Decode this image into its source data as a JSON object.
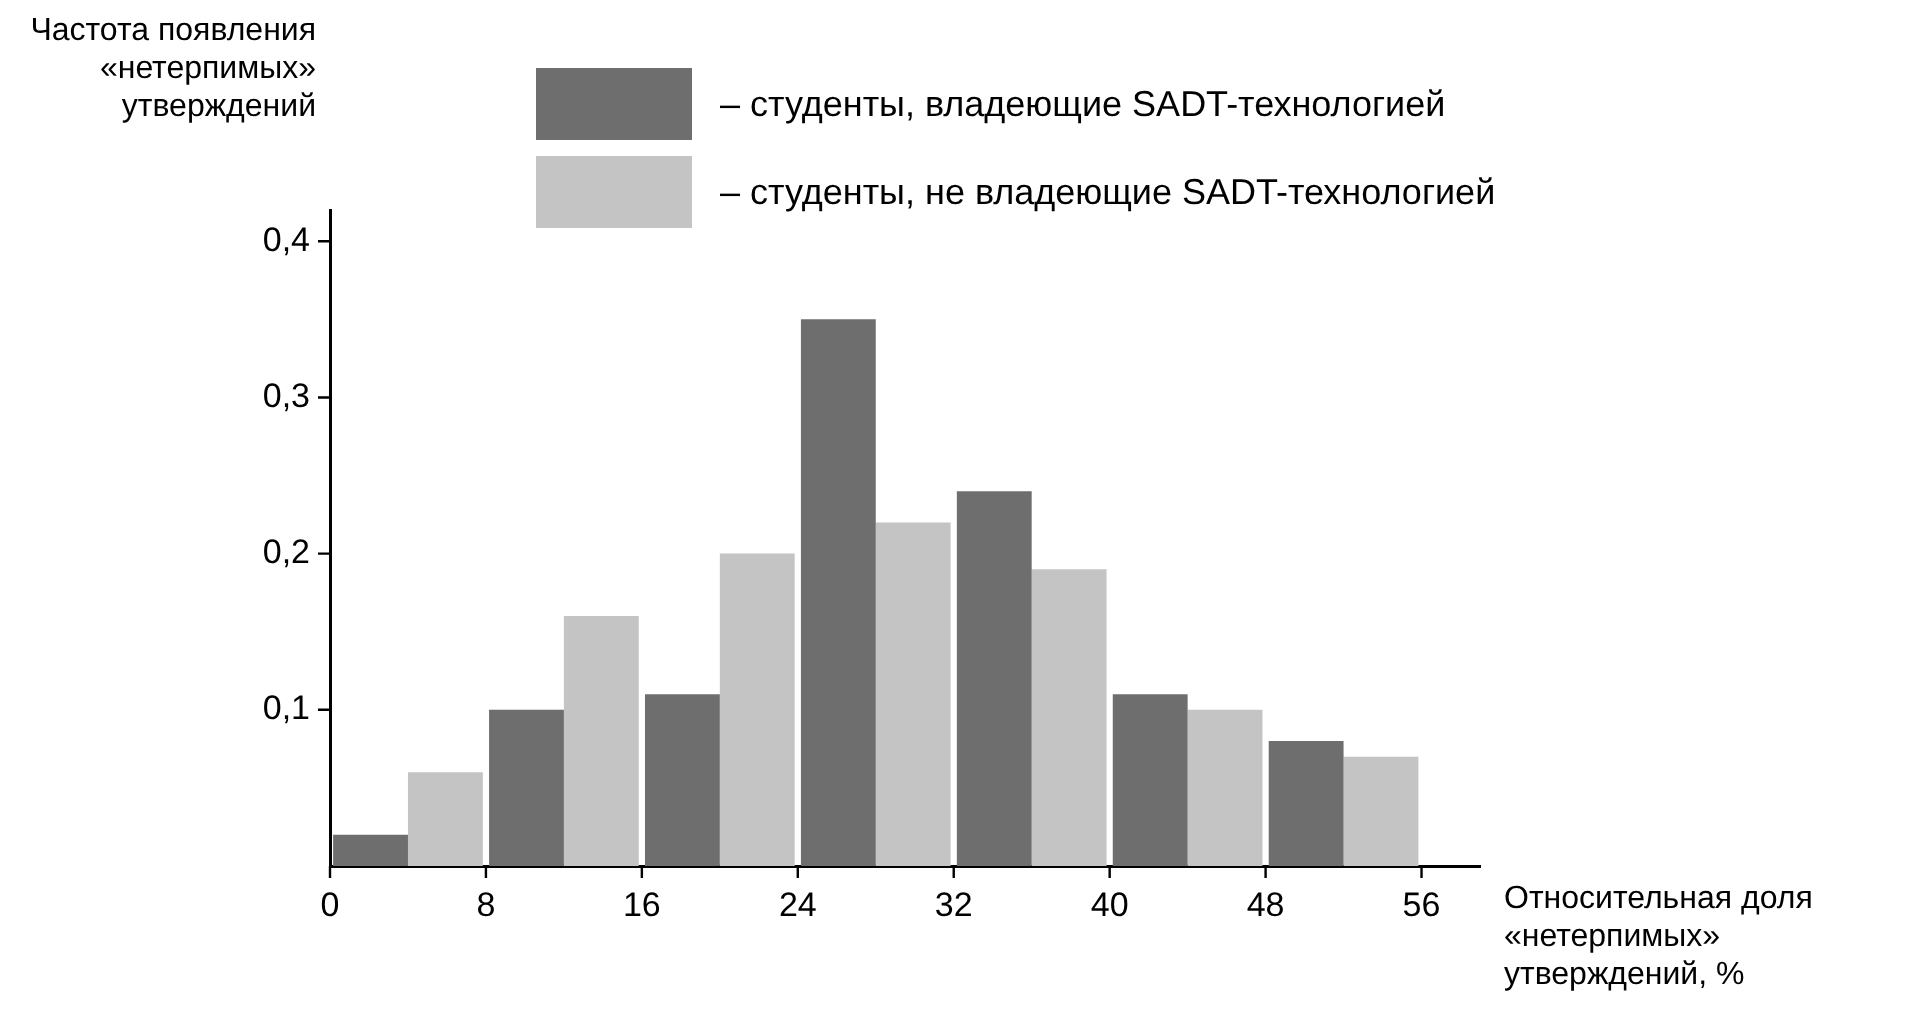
{
  "chart_data": {
    "type": "histogram",
    "xlabel": "Относительная доля «нетерпимых» утверждений, %",
    "ylabel": "Частота появления «нетерпимых» утверждений",
    "bins": [
      0,
      8,
      16,
      24,
      32,
      40,
      48,
      56
    ],
    "series": [
      {
        "name": "– студенты, владеющие SADT-технологией",
        "color": "#6e6e6e",
        "values": [
          0.02,
          0.1,
          0.11,
          0.35,
          0.24,
          0.11,
          0.08
        ]
      },
      {
        "name": "– студенты, не владеющие SADT-технологией",
        "color": "#c4c4c4",
        "values": [
          0.06,
          0.16,
          0.2,
          0.22,
          0.19,
          0.1,
          0.07
        ]
      }
    ],
    "xlim": [
      0,
      59
    ],
    "xticks": [
      0,
      8,
      16,
      24,
      32,
      40,
      48,
      56
    ],
    "ylim": [
      0,
      0.42
    ],
    "yticks": [
      {
        "value": 0.1,
        "label": "0,1"
      },
      {
        "value": 0.2,
        "label": "0,2"
      },
      {
        "value": 0.3,
        "label": "0,3"
      },
      {
        "value": 0.4,
        "label": "0,4"
      }
    ],
    "grid": false,
    "legend": "top"
  }
}
